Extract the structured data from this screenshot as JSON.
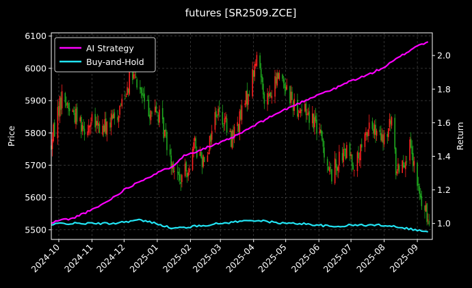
{
  "chart_data": {
    "type": "line",
    "title": "futures [SR2509.ZCE]",
    "ylabel_left": "Price",
    "ylabel_right": "Return",
    "xlim": [
      "2024-09-24",
      "2025-09-15"
    ],
    "ylim_left": [
      5470,
      6110
    ],
    "ylim_right": [
      0.905,
      2.135
    ],
    "grid": true,
    "background": "#000000",
    "legend_placement": "top-left",
    "x_ticks": [
      "2024-10",
      "2024-11",
      "2024-12",
      "2025-01",
      "2025-02",
      "2025-03",
      "2025-04",
      "2025-05",
      "2025-06",
      "2025-07",
      "2025-08",
      "2025-09"
    ],
    "y_ticks_left": [
      "5500",
      "5600",
      "5700",
      "5800",
      "5900",
      "6000",
      "6100"
    ],
    "y_ticks_right": [
      "1.0",
      "1.2",
      "1.4",
      "1.6",
      "1.8",
      "2.0"
    ],
    "candle_colors": {
      "up": "#ff2020",
      "down": "#1faa1f"
    },
    "price_anchors": [
      [
        "2024-09-24",
        5760
      ],
      [
        "2024-09-30",
        5870
      ],
      [
        "2024-10-05",
        5920
      ],
      [
        "2024-10-10",
        5880
      ],
      [
        "2024-10-18",
        5850
      ],
      [
        "2024-10-25",
        5820
      ],
      [
        "2024-11-01",
        5830
      ],
      [
        "2024-11-10",
        5810
      ],
      [
        "2024-11-18",
        5830
      ],
      [
        "2024-11-25",
        5860
      ],
      [
        "2024-12-01",
        5920
      ],
      [
        "2024-12-08",
        5980
      ],
      [
        "2024-12-15",
        5940
      ],
      [
        "2024-12-22",
        5880
      ],
      [
        "2025-01-01",
        5860
      ],
      [
        "2025-01-08",
        5800
      ],
      [
        "2025-01-15",
        5710
      ],
      [
        "2025-01-22",
        5650
      ],
      [
        "2025-01-28",
        5680
      ],
      [
        "2025-02-05",
        5760
      ],
      [
        "2025-02-12",
        5720
      ],
      [
        "2025-02-18",
        5760
      ],
      [
        "2025-02-25",
        5870
      ],
      [
        "2025-03-05",
        5840
      ],
      [
        "2025-03-10",
        5780
      ],
      [
        "2025-03-18",
        5830
      ],
      [
        "2025-03-25",
        5900
      ],
      [
        "2025-04-01",
        5990
      ],
      [
        "2025-04-05",
        6040
      ],
      [
        "2025-04-12",
        5900
      ],
      [
        "2025-04-18",
        5920
      ],
      [
        "2025-04-25",
        5990
      ],
      [
        "2025-05-02",
        5940
      ],
      [
        "2025-05-10",
        5880
      ],
      [
        "2025-05-20",
        5870
      ],
      [
        "2025-05-28",
        5840
      ],
      [
        "2025-06-05",
        5760
      ],
      [
        "2025-06-12",
        5670
      ],
      [
        "2025-06-20",
        5720
      ],
      [
        "2025-06-28",
        5740
      ],
      [
        "2025-07-05",
        5700
      ],
      [
        "2025-07-12",
        5750
      ],
      [
        "2025-07-18",
        5830
      ],
      [
        "2025-07-25",
        5790
      ],
      [
        "2025-08-01",
        5770
      ],
      [
        "2025-08-08",
        5840
      ],
      [
        "2025-08-12",
        5690
      ],
      [
        "2025-08-18",
        5710
      ],
      [
        "2025-08-25",
        5750
      ],
      [
        "2025-09-01",
        5640
      ],
      [
        "2025-09-05",
        5580
      ],
      [
        "2025-09-10",
        5540
      ],
      [
        "2025-09-13",
        5530
      ]
    ],
    "series": [
      {
        "name": "AI Strategy",
        "color": "#ff00ff",
        "points": [
          [
            "2024-09-24",
            1.0
          ],
          [
            "2024-10-01",
            1.02
          ],
          [
            "2024-10-15",
            1.03
          ],
          [
            "2024-10-20",
            1.05
          ],
          [
            "2024-11-01",
            1.08
          ],
          [
            "2024-11-15",
            1.13
          ],
          [
            "2024-12-01",
            1.2
          ],
          [
            "2024-12-15",
            1.25
          ],
          [
            "2025-01-01",
            1.3
          ],
          [
            "2025-01-15",
            1.34
          ],
          [
            "2025-01-25",
            1.4
          ],
          [
            "2025-02-15",
            1.45
          ],
          [
            "2025-03-01",
            1.48
          ],
          [
            "2025-03-15",
            1.52
          ],
          [
            "2025-04-01",
            1.58
          ],
          [
            "2025-04-15",
            1.63
          ],
          [
            "2025-05-01",
            1.68
          ],
          [
            "2025-05-15",
            1.72
          ],
          [
            "2025-06-01",
            1.77
          ],
          [
            "2025-06-15",
            1.8
          ],
          [
            "2025-07-01",
            1.85
          ],
          [
            "2025-07-15",
            1.88
          ],
          [
            "2025-08-01",
            1.93
          ],
          [
            "2025-08-15",
            1.99
          ],
          [
            "2025-08-25",
            2.03
          ],
          [
            "2025-09-01",
            2.06
          ],
          [
            "2025-09-12",
            2.08
          ]
        ]
      },
      {
        "name": "Buy-and-Hold",
        "color": "#22e5f5",
        "points": [
          [
            "2024-09-24",
            0.99
          ],
          [
            "2024-10-01",
            1.0
          ],
          [
            "2024-10-15",
            1.0
          ],
          [
            "2024-11-01",
            1.0
          ],
          [
            "2024-11-20",
            1.0
          ],
          [
            "2024-12-01",
            1.01
          ],
          [
            "2024-12-15",
            1.02
          ],
          [
            "2025-01-01",
            1.0
          ],
          [
            "2025-01-15",
            0.97
          ],
          [
            "2025-02-01",
            0.98
          ],
          [
            "2025-02-15",
            0.99
          ],
          [
            "2025-03-01",
            1.0
          ],
          [
            "2025-03-15",
            1.01
          ],
          [
            "2025-04-01",
            1.02
          ],
          [
            "2025-04-15",
            1.01
          ],
          [
            "2025-05-01",
            1.0
          ],
          [
            "2025-05-15",
            1.0
          ],
          [
            "2025-06-01",
            0.99
          ],
          [
            "2025-06-15",
            0.98
          ],
          [
            "2025-07-01",
            0.99
          ],
          [
            "2025-07-15",
            0.99
          ],
          [
            "2025-08-01",
            0.99
          ],
          [
            "2025-08-15",
            0.98
          ],
          [
            "2025-09-01",
            0.96
          ],
          [
            "2025-09-12",
            0.95
          ]
        ]
      }
    ]
  }
}
